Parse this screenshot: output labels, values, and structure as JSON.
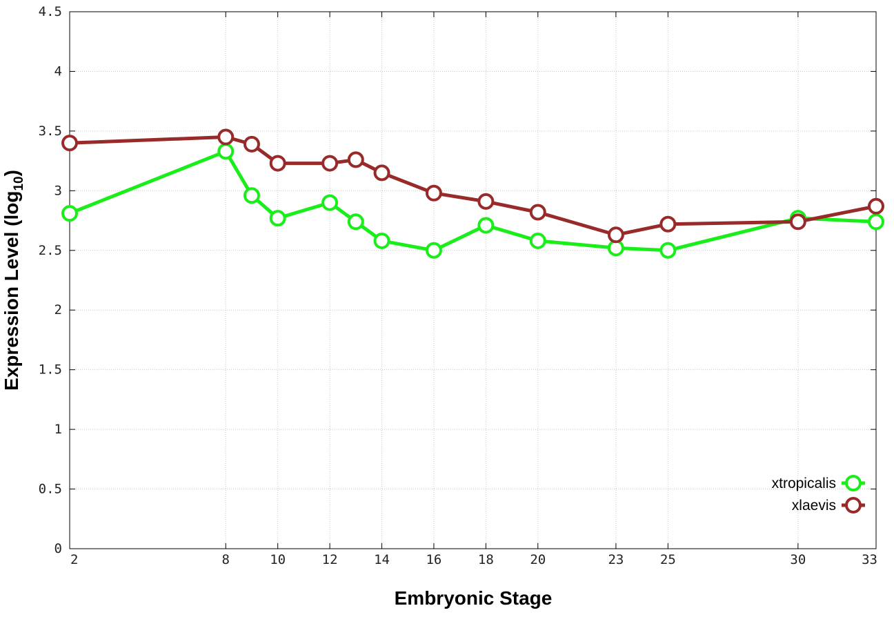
{
  "chart_data": {
    "type": "line",
    "xlabel": "Embryonic Stage",
    "ylabel": "Expression Level (log",
    "ylabel_sub": "10",
    "ylabel_close": ")",
    "xlim": [
      2,
      33
    ],
    "ylim": [
      0,
      4.5
    ],
    "x": [
      2,
      8,
      9,
      10,
      12,
      13,
      14,
      16,
      18,
      20,
      23,
      25,
      30,
      33
    ],
    "xticks": [
      2,
      8,
      10,
      12,
      14,
      16,
      18,
      20,
      23,
      25,
      30,
      33
    ],
    "yticks": [
      0,
      0.5,
      1,
      1.5,
      2,
      2.5,
      3,
      3.5,
      4,
      4.5
    ],
    "ytick_labels": [
      "0",
      "0.5",
      "1",
      "1.5",
      "2",
      "2.5",
      "3",
      "3.5",
      "4",
      "4.5"
    ],
    "grid": true,
    "legend_position": "bottom-right",
    "series": [
      {
        "name": "xtropicalis",
        "color": "#1aee1a",
        "values": [
          2.81,
          3.33,
          2.96,
          2.77,
          2.9,
          2.74,
          2.58,
          2.5,
          2.71,
          2.58,
          2.52,
          2.5,
          2.77,
          2.74
        ]
      },
      {
        "name": "xlaevis",
        "color": "#992a2a",
        "values": [
          3.4,
          3.45,
          3.39,
          3.23,
          3.23,
          3.26,
          3.15,
          2.98,
          2.91,
          2.82,
          2.63,
          2.72,
          2.74,
          2.87
        ]
      }
    ]
  }
}
